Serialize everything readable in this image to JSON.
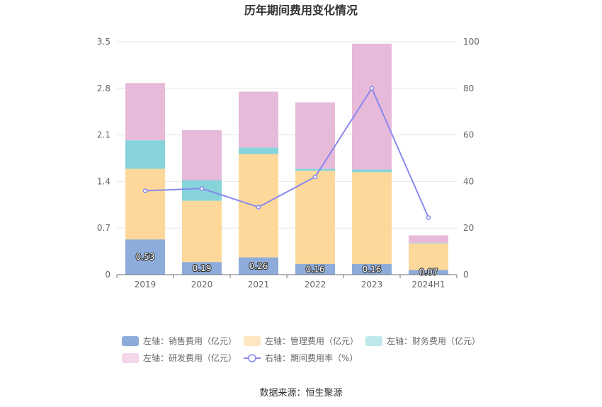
{
  "chart_data": {
    "type": "bar",
    "title": "历年期间费用变化情况",
    "categories": [
      "2019",
      "2020",
      "2021",
      "2022",
      "2023",
      "2024H1"
    ],
    "stacked": true,
    "series": [
      {
        "name": "左轴：销售费用（亿元）",
        "axis": "left",
        "color": "#8eacd9",
        "values": [
          0.53,
          0.19,
          0.26,
          0.16,
          0.16,
          0.07
        ],
        "show_labels": true
      },
      {
        "name": "左轴：管理费用（亿元）",
        "axis": "left",
        "color": "#fdd89a",
        "legend_color": "#fde7c1",
        "values": [
          1.06,
          0.92,
          1.55,
          1.4,
          1.38,
          0.4
        ]
      },
      {
        "name": "左轴：财务费用（亿元）",
        "axis": "left",
        "color": "#86d4da",
        "legend_color": "#bde9ec",
        "values": [
          0.43,
          0.31,
          0.1,
          0.03,
          0.04,
          0.01
        ]
      },
      {
        "name": "左轴：研发费用（亿元）",
        "axis": "left",
        "color": "#e8bad9",
        "legend_color": "#f3d7ea",
        "values": [
          0.86,
          0.75,
          0.84,
          1.0,
          1.89,
          0.11
        ]
      }
    ],
    "line_series": {
      "name": "右轴：期间费用率（%）",
      "axis": "right",
      "color": "#8888ee",
      "values": [
        36.0,
        37.0,
        29.0,
        42.0,
        80.0,
        24.5
      ]
    },
    "yleft": {
      "ticks": [
        "0",
        "0.7",
        "1.4",
        "2.1",
        "2.8",
        "3.5"
      ],
      "min": 0,
      "max": 3.5
    },
    "yright": {
      "ticks": [
        "0",
        "20",
        "40",
        "60",
        "80",
        "100"
      ],
      "min": 0,
      "max": 100
    },
    "grid": true,
    "legend_position": "bottom"
  },
  "source": "数据来源：恒生聚源"
}
